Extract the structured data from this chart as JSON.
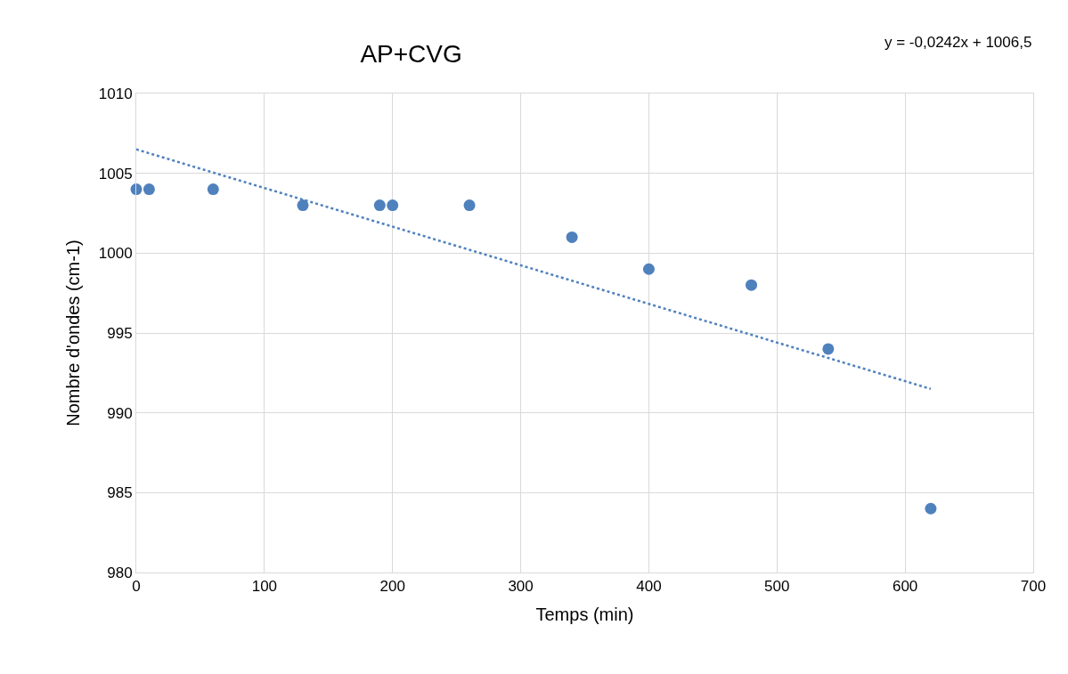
{
  "chart_data": {
    "type": "scatter",
    "title": "AP+CVG",
    "xlabel": "Temps (min)",
    "ylabel": "Nombre d'ondes (cm-1)",
    "annotations": [
      "y = -0,0242x + 1006,5"
    ],
    "series": [
      {
        "color": "#4f81bd",
        "marker": "circle",
        "x": [
          0,
          10,
          60,
          130,
          190,
          200,
          260,
          340,
          400,
          480,
          540,
          620
        ],
        "values": [
          1004,
          1004,
          1004,
          1003,
          1003,
          1003,
          1003,
          1001,
          999,
          998,
          994,
          984
        ]
      },
      {
        "type": "line",
        "color": "#4f81bd",
        "line_style": "dotted",
        "x": [
          0,
          620
        ],
        "values": [
          1006.5,
          991.5
        ]
      }
    ],
    "xlim": [
      0,
      700
    ],
    "xticks": [
      0,
      100,
      200,
      300,
      400,
      500,
      600,
      700
    ],
    "ylim": [
      980,
      1010
    ],
    "yticks": [
      980,
      985,
      990,
      995,
      1000,
      1005,
      1010
    ],
    "grid": true
  }
}
